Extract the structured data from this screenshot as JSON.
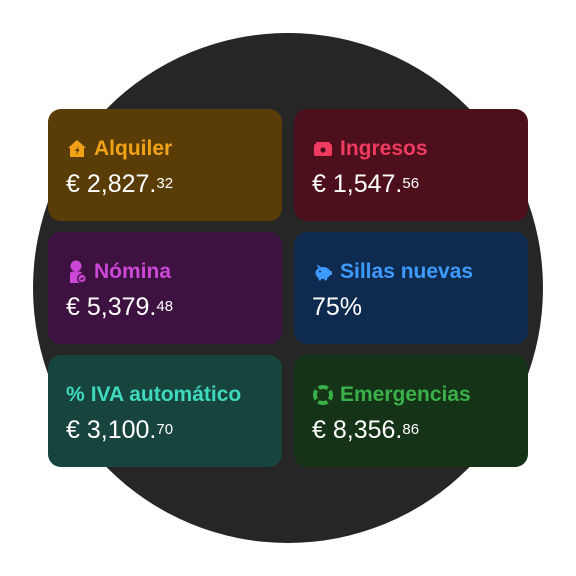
{
  "cards": [
    {
      "title": "Alquiler",
      "icon": "house-icon",
      "main": "€ 2,827.",
      "cents": "32",
      "bg": "#5a3d06",
      "accent": "#f2a216"
    },
    {
      "title": "Ingresos",
      "icon": "cash-icon",
      "main": "€ 1,547.",
      "cents": "56",
      "bg": "#4d0f1b",
      "accent": "#f03a5f"
    },
    {
      "title": "Nómina",
      "icon": "person-badge-icon",
      "main": "€ 5,379.",
      "cents": "48",
      "bg": "#3d1240",
      "accent": "#cc47d6"
    },
    {
      "title": "Sillas nuevas",
      "icon": "piggy-bank-icon",
      "main": "75%",
      "cents": "",
      "bg": "#0f2a4f",
      "accent": "#3d9bff"
    },
    {
      "title": "IVA automático",
      "prefix": "%",
      "icon": "",
      "main": "€ 3,100.",
      "cents": "70",
      "bg": "#17453d",
      "accent": "#3fd9bd"
    },
    {
      "title": "Emergencias",
      "icon": "lifebuoy-icon",
      "main": "€ 8,356.",
      "cents": "86",
      "bg": "#143317",
      "accent": "#39b04a"
    }
  ]
}
